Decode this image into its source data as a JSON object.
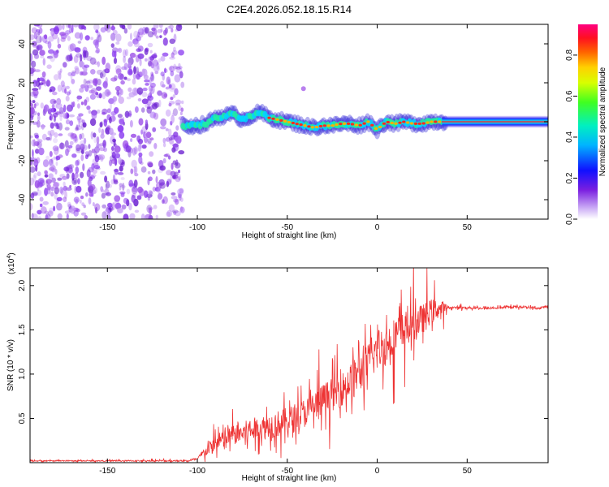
{
  "title": "C2E4.2026.052.18.15.R14",
  "colors": {
    "snr_line": "#ee3333",
    "spectrogram_scatter": "#8a2be2",
    "spectrogram_core": "#ff2020",
    "axis": "#000000",
    "background": "#ffffff"
  },
  "chart_data": [
    {
      "type": "heatmap",
      "name": "spectrogram",
      "title": "C2E4.2026.052.18.15.R14",
      "xlabel": "Height of straight line (km)",
      "ylabel": "Frequency (Hz)",
      "xlim": [
        -193,
        95
      ],
      "ylim": [
        -50,
        50
      ],
      "xticks": [
        -150,
        -100,
        -50,
        0,
        50
      ],
      "yticks": [
        -40,
        -20,
        0,
        20,
        40
      ],
      "noise_region_x": [
        -193,
        -108
      ],
      "ridge": {
        "x": [
          -108,
          -100,
          -95,
          -90,
          -85,
          -80,
          -75,
          -70,
          -65,
          -60,
          -55,
          -50,
          -45,
          -40,
          -35,
          -30,
          -25,
          -20,
          -15,
          -10,
          -5,
          0,
          5,
          10,
          15,
          20,
          25,
          30,
          35,
          40,
          60,
          80,
          95
        ],
        "y": [
          -2,
          -2,
          -1,
          2,
          3,
          4,
          1,
          3,
          5,
          2,
          1,
          0,
          -1,
          -2,
          -3,
          -2,
          -2,
          -1,
          -1,
          -2,
          0,
          -4,
          0,
          -1,
          0,
          -1,
          -1,
          0,
          0,
          0,
          0,
          0,
          0
        ]
      },
      "isolated_blob": {
        "x": -41,
        "y": 17
      },
      "colorbar": {
        "label": "Normalized spectral amplitude",
        "range": [
          0,
          0.95
        ],
        "ticks": [
          0.0,
          0.2,
          0.4,
          0.6,
          0.8
        ]
      }
    },
    {
      "type": "line",
      "name": "snr",
      "xlabel": "Height of straight line (km)",
      "ylabel": "SNR (10 * v/v)",
      "multiplier": "(x10",
      "multiplier_exp": "4",
      "multiplier_close": ")",
      "xlim": [
        -193,
        95
      ],
      "ylim": [
        0,
        2.2
      ],
      "xticks": [
        -150,
        -100,
        -50,
        0,
        50
      ],
      "yticks": [
        0.5,
        1.0,
        1.5,
        2.0
      ],
      "envelope": {
        "x": [
          -193,
          -120,
          -105,
          -100,
          -97,
          -90,
          -80,
          -70,
          -60,
          -50,
          -40,
          -30,
          -20,
          -10,
          -5,
          0,
          5,
          10,
          20,
          25,
          30,
          35,
          40,
          50,
          60,
          70,
          80,
          90,
          95
        ],
        "y": [
          0.02,
          0.02,
          0.02,
          0.04,
          0.1,
          0.2,
          0.3,
          0.35,
          0.4,
          0.45,
          0.55,
          0.7,
          0.8,
          1.0,
          1.1,
          1.25,
          1.3,
          1.4,
          1.55,
          1.6,
          1.7,
          1.73,
          1.75,
          1.75,
          1.74,
          1.75,
          1.76,
          1.74,
          1.77
        ]
      },
      "noise_amplitude": {
        "x": [
          -193,
          -100,
          -97,
          -90,
          -70,
          -50,
          -30,
          -10,
          0,
          10,
          20,
          30,
          36,
          40,
          95
        ],
        "y": [
          0.01,
          0.02,
          0.1,
          0.2,
          0.3,
          0.35,
          0.4,
          0.45,
          0.55,
          0.5,
          0.45,
          0.3,
          0.2,
          0.03,
          0.03
        ]
      }
    }
  ]
}
